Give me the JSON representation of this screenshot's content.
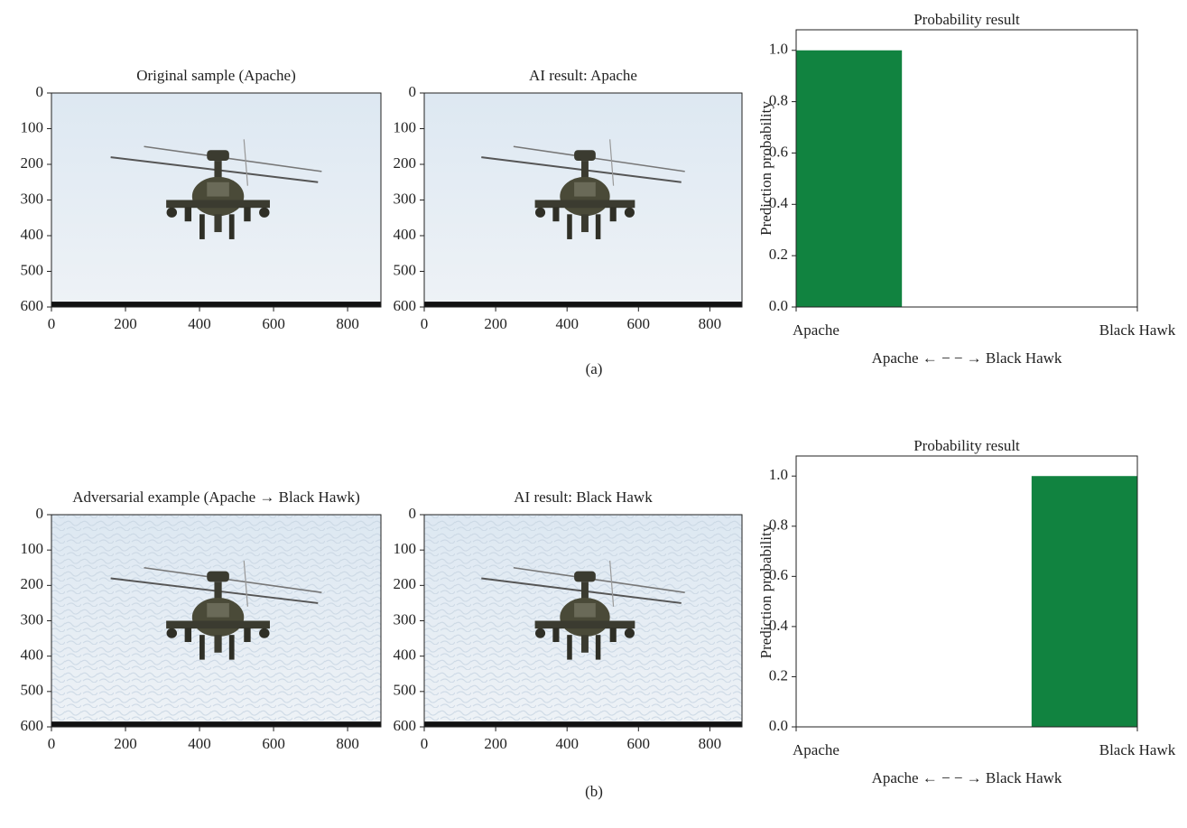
{
  "chart_data": [
    {
      "type": "image",
      "title": "Original sample (Apache)",
      "xlim": [
        0,
        890
      ],
      "ylim": [
        600,
        0
      ],
      "xticks": [
        0,
        200,
        400,
        600,
        800
      ],
      "yticks": [
        0,
        100,
        200,
        300,
        400,
        500,
        600
      ]
    },
    {
      "type": "image",
      "title": "AI result: Apache",
      "xlim": [
        0,
        890
      ],
      "ylim": [
        600,
        0
      ],
      "xticks": [
        0,
        200,
        400,
        600,
        800
      ],
      "yticks": [
        0,
        100,
        200,
        300,
        400,
        500,
        600
      ]
    },
    {
      "type": "bar",
      "title": "Probability result",
      "ylabel": "Prediction probability",
      "xlabel": "Apache ← − − → Black Hawk",
      "categories": [
        "Apache",
        "Black Hawk"
      ],
      "values": [
        1,
        0
      ],
      "color": "#118340",
      "ylim": [
        0,
        1.08
      ],
      "yticks": [
        {
          "value": 0,
          "label": "0.0"
        },
        {
          "value": 0.2,
          "label": "0.2"
        },
        {
          "value": 0.4,
          "label": "0.4"
        },
        {
          "value": 0.6,
          "label": "0.6"
        },
        {
          "value": 0.8,
          "label": "0.8"
        },
        {
          "value": 1,
          "label": "1.0"
        }
      ]
    },
    {
      "type": "image",
      "title": "Adversarial example (Apache → Black Hawk)",
      "xlim": [
        0,
        890
      ],
      "ylim": [
        600,
        0
      ],
      "xticks": [
        0,
        200,
        400,
        600,
        800
      ],
      "yticks": [
        0,
        100,
        200,
        300,
        400,
        500,
        600
      ]
    },
    {
      "type": "image",
      "title": "AI result: Black Hawk",
      "xlim": [
        0,
        890
      ],
      "ylim": [
        600,
        0
      ],
      "xticks": [
        0,
        200,
        400,
        600,
        800
      ],
      "yticks": [
        0,
        100,
        200,
        300,
        400,
        500,
        600
      ]
    },
    {
      "type": "bar",
      "title": "Probability result",
      "ylabel": "Prediction probability",
      "xlabel": "Apache ← − − → Black Hawk",
      "categories": [
        "Apache",
        "Black Hawk"
      ],
      "values": [
        0,
        1
      ],
      "color": "#118340",
      "ylim": [
        0,
        1.08
      ],
      "yticks": [
        {
          "value": 0,
          "label": "0.0"
        },
        {
          "value": 0.2,
          "label": "0.2"
        },
        {
          "value": 0.4,
          "label": "0.4"
        },
        {
          "value": 0.6,
          "label": "0.6"
        },
        {
          "value": 0.8,
          "label": "0.8"
        },
        {
          "value": 1,
          "label": "1.0"
        }
      ]
    }
  ],
  "panel_labels": [
    "(a)",
    "(b)"
  ]
}
